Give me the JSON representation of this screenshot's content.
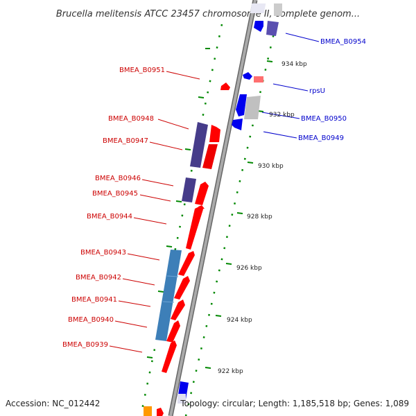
{
  "title": "Brucella melitensis ATCC 23457 chromosome II, complete genom...",
  "accession": "Accession: NC_012442",
  "topology": "Topology: circular; Length: 1,185,518 bp; Genes: 1,089",
  "colors": {
    "forward_label": "#cc0000",
    "reverse_label": "#0000cc",
    "forward_cds": "#ff0000",
    "reverse_cds": "#0000ff",
    "purple_cds": "#4a3c8c",
    "steel_blue_cds": "#3d7fb8",
    "gc_skew": "#008800",
    "backbone": "#999999",
    "pink_feature": "#ff7777",
    "light_gray_feature": "#cccccc",
    "orange_feature": "#ff9900"
  },
  "ticks": [
    {
      "label": "934 kbp"
    },
    {
      "label": "932 kbp"
    },
    {
      "label": "930 kbp"
    },
    {
      "label": "928 kbp"
    },
    {
      "label": "926 kbp"
    },
    {
      "label": "924 kbp"
    },
    {
      "label": "922 kbp"
    }
  ],
  "genes_left": [
    {
      "label": "BMEA_B0951"
    },
    {
      "label": "BMEA_B0948"
    },
    {
      "label": "BMEA_B0947"
    },
    {
      "label": "BMEA_B0946"
    },
    {
      "label": "BMEA_B0945"
    },
    {
      "label": "BMEA_B0944"
    },
    {
      "label": "BMEA_B0943"
    },
    {
      "label": "BMEA_B0942"
    },
    {
      "label": "BMEA_B0941"
    },
    {
      "label": "BMEA_B0940"
    },
    {
      "label": "BMEA_B0939"
    }
  ],
  "genes_right": [
    {
      "label": "BMEA_B0954"
    },
    {
      "label": "rpsU"
    },
    {
      "label": "BMEA_B0950"
    },
    {
      "label": "BMEA_B0949"
    }
  ]
}
